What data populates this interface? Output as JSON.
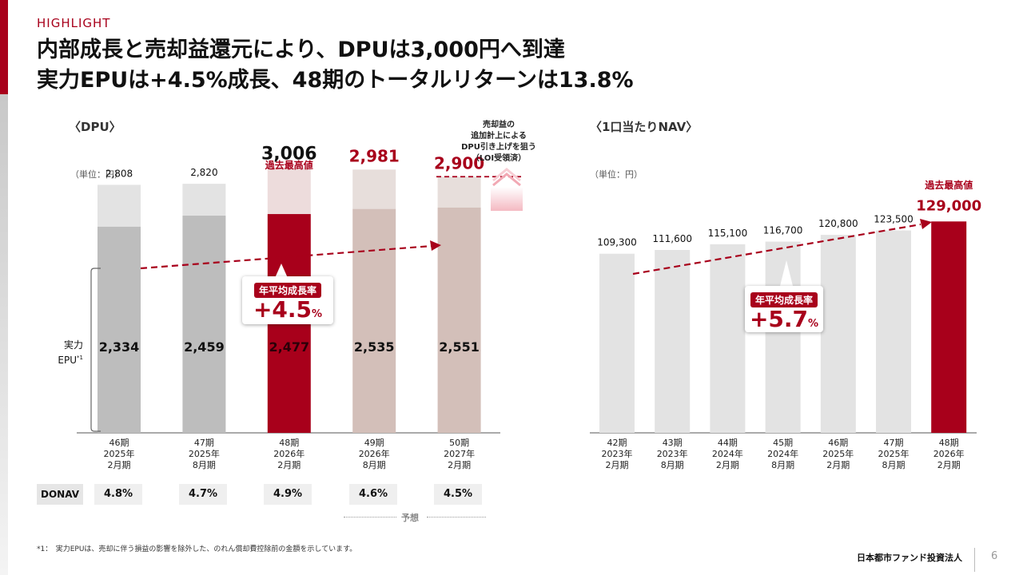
{
  "header": {
    "kicker": "HIGHLIGHT",
    "title_line1": "内部成長と売却益還元により、DPUは3,000円へ到達",
    "title_line2": "実力EPUは+4.5%成長、48期のトータルリターンは13.8%"
  },
  "dpu_section": {
    "title": "〈DPU〉",
    "unit": "（単位：円）",
    "record_label": "過去最高値",
    "epu_label_line1": "実力",
    "epu_label_line2": "EPU",
    "epu_label_sup": "*1",
    "note_lines": [
      "売却益の",
      "追加計上による",
      "DPU引き上げを狙う",
      "（LOI受領済）"
    ],
    "cagr_label": "年平均成長率",
    "cagr_value": "+4.5",
    "cagr_unit": "%"
  },
  "nav_section": {
    "title": "〈1口当たりNAV〉",
    "unit": "（単位：円）",
    "record_label": "過去最高値",
    "cagr_label": "年平均成長率",
    "cagr_value": "+5.7",
    "cagr_unit": "%"
  },
  "donav": {
    "label": "DONAV",
    "values": [
      "4.8%",
      "4.7%",
      "4.9%",
      "4.6%",
      "4.5%"
    ]
  },
  "forecast_label": "予想",
  "footnote": "*1：　実力EPUは、売却に伴う損益の影響を除外した、のれん償却費控除前の金額を示しています。",
  "footer": {
    "company": "日本都市ファンド投資法人",
    "page": "6"
  },
  "colors": {
    "accent": "#a8001b",
    "grey_dark": "#bdbdbd",
    "grey_light": "#e3e3e3",
    "pink_light": "#eddcdc",
    "taupe_dark": "#d3bfb9",
    "taupe_light": "#e7dedb"
  },
  "chart_data": [
    {
      "type": "bar",
      "title": "〈DPU〉",
      "categories": [
        "46期\n2025年\n2月期",
        "47期\n2025年\n8月期",
        "48期\n2026年\n2月期",
        "49期\n2026年\n8月期",
        "50期\n2027年\n2月期"
      ],
      "series": [
        {
          "name": "実力EPU",
          "values": [
            2334,
            2459,
            2477,
            2535,
            2551
          ]
        },
        {
          "name": "DPU",
          "values": [
            2808,
            2820,
            3006,
            2981,
            2900
          ]
        }
      ],
      "value_labels": [
        "2,808",
        "2,820",
        "3,006",
        "2,981",
        "2,900"
      ],
      "epu_labels": [
        "2,334",
        "2,459",
        "2,477",
        "2,535",
        "2,551"
      ],
      "ylim": [
        0,
        3100
      ],
      "forecast_from_index": 3,
      "highlight_index": 2,
      "cagr": "+4.5%"
    },
    {
      "type": "bar",
      "title": "〈1口当たりNAV〉",
      "categories": [
        "42期\n2023年\n2月期",
        "43期\n2023年\n8月期",
        "44期\n2024年\n2月期",
        "45期\n2024年\n8月期",
        "46期\n2025年\n2月期",
        "47期\n2025年\n8月期",
        "48期\n2026年\n2月期"
      ],
      "values": [
        109300,
        111600,
        115100,
        116700,
        120800,
        123500,
        129000
      ],
      "value_labels": [
        "109,300",
        "111,600",
        "115,100",
        "116,700",
        "120,800",
        "123,500",
        "129,000"
      ],
      "ylim": [
        0,
        129000
      ],
      "highlight_index": 6,
      "cagr": "+5.7%"
    }
  ]
}
